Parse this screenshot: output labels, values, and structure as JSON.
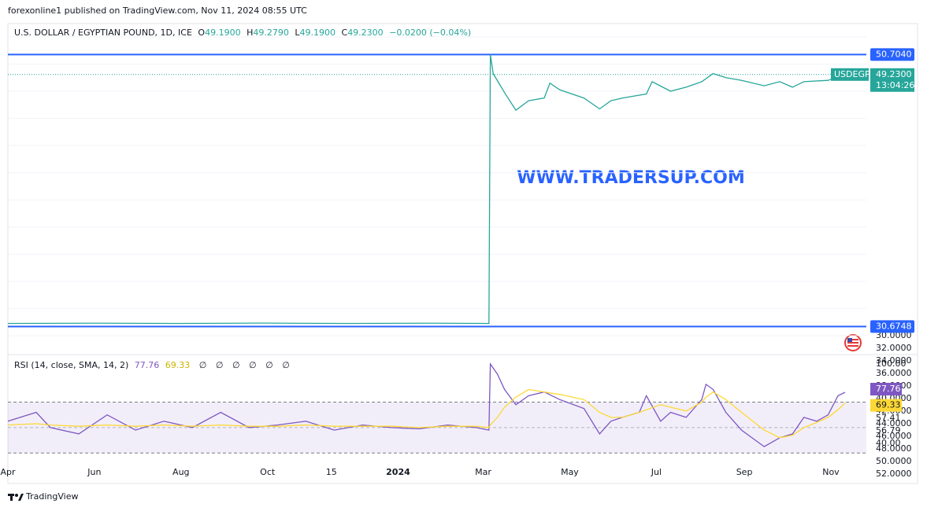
{
  "header": {
    "publisher": "forexonline1 published on TradingView.com, Nov 11, 2024 08:55 UTC"
  },
  "watermark": "WWW.TRADERSUP.COM",
  "footer": {
    "brand": "TradingView"
  },
  "chart_data": [
    {
      "type": "line",
      "title": "U.S. DOLLAR / EGYPTIAN POUND, 1D, ICE",
      "ohlc": [
        {
          "name": "O",
          "value": "49.1900"
        },
        {
          "name": "H",
          "value": "49.2790"
        },
        {
          "name": "L",
          "value": "49.1900"
        },
        {
          "name": "C",
          "value": "49.2300"
        }
      ],
      "change": "−0.0200 (−0.04%)",
      "x": [
        0,
        60,
        120,
        180,
        240,
        300,
        339,
        340,
        342,
        350,
        358,
        367,
        378,
        382,
        389,
        406,
        417,
        425,
        433,
        450,
        454,
        467,
        478,
        489,
        497,
        506,
        517,
        533,
        544,
        553,
        561,
        578,
        590
      ],
      "series": [
        {
          "name": "USDEGP",
          "color": "#26a69a",
          "values": [
            30.9,
            30.92,
            30.9,
            30.93,
            30.9,
            30.92,
            30.9,
            50.7,
            49.3,
            47.9,
            46.6,
            47.3,
            47.5,
            48.6,
            48.1,
            47.5,
            46.7,
            47.3,
            47.5,
            47.8,
            48.7,
            48.0,
            48.3,
            48.7,
            49.3,
            49.0,
            48.8,
            48.4,
            48.7,
            48.3,
            48.7,
            48.8,
            49.23
          ]
        }
      ],
      "last": {
        "label": "49.2300",
        "time": "13:04:26"
      },
      "hlines": [
        {
          "value": 50.704,
          "label": "50.7040"
        },
        {
          "value": 30.6748,
          "label": "30.6748"
        }
      ],
      "hline_color": "#2962ff",
      "xlim": [
        0,
        605
      ],
      "ylim": [
        28.67,
        52.98
      ],
      "yticks": [
        {
          "value": 30,
          "label": "30.0000"
        },
        {
          "value": 32,
          "label": "32.0000"
        },
        {
          "value": 34,
          "label": "34.0000"
        },
        {
          "value": 36,
          "label": "36.0000"
        },
        {
          "value": 38,
          "label": "38.0000"
        },
        {
          "value": 40,
          "label": "40.0000"
        },
        {
          "value": 42,
          "label": "42.0000"
        },
        {
          "value": 44,
          "label": "44.0000"
        },
        {
          "value": 46,
          "label": "46.0000"
        },
        {
          "value": 48,
          "label": "48.0000"
        },
        {
          "value": 50,
          "label": "50.0000"
        },
        {
          "value": 52,
          "label": "52.0000"
        }
      ],
      "grid": true
    },
    {
      "type": "line",
      "title": "RSI (14, close, SMA, 14, 2)",
      "placeholders": [
        "∅",
        "∅",
        "∅",
        "∅",
        "∅",
        "∅"
      ],
      "x": [
        0,
        20,
        30,
        50,
        70,
        90,
        110,
        130,
        150,
        170,
        190,
        210,
        230,
        250,
        270,
        290,
        310,
        330,
        339,
        340,
        345,
        350,
        358,
        367,
        378,
        389,
        406,
        417,
        425,
        433,
        445,
        450,
        460,
        467,
        478,
        489,
        492,
        497,
        506,
        517,
        533,
        544,
        553,
        561,
        570,
        578,
        585,
        590
      ],
      "series": [
        {
          "color": "#7e57c2",
          "values": [
            55,
            62,
            50,
            45,
            60,
            48,
            55,
            50,
            62,
            50,
            52,
            55,
            48,
            52,
            50,
            49,
            52,
            50,
            48,
            100,
            92,
            80,
            68,
            75,
            78,
            72,
            65,
            45,
            55,
            58,
            62,
            75,
            55,
            62,
            58,
            72,
            84,
            80,
            62,
            48,
            35,
            42,
            45,
            58,
            55,
            60,
            75,
            77.76
          ]
        },
        {
          "color": "#fdd835",
          "values": [
            52,
            53,
            52,
            51,
            52,
            51,
            52,
            51,
            52,
            51,
            51,
            52,
            51,
            51,
            51,
            50,
            51,
            51,
            50,
            52,
            58,
            66,
            74,
            80,
            78,
            76,
            72,
            62,
            58,
            58,
            62,
            64,
            68,
            66,
            63,
            70,
            74,
            78,
            72,
            62,
            48,
            42,
            44,
            50,
            54,
            58,
            64,
            69.33
          ]
        }
      ],
      "band": [
        30,
        70
      ],
      "midline": 50,
      "xlim": [
        0,
        605
      ],
      "ylim": [
        22.7,
        106.2
      ],
      "yticks": [
        {
          "value": 100,
          "label": "100.00"
        },
        57.41,
        56.79,
        {
          "value": 40,
          "label": "40.00"
        }
      ],
      "xticks": [
        {
          "value": 0,
          "label": "Apr"
        },
        {
          "value": 61,
          "label": "Jun"
        },
        {
          "value": 122,
          "label": "Aug"
        },
        {
          "value": 183,
          "label": "Oct"
        },
        {
          "value": 228,
          "label": "15"
        },
        {
          "value": 275,
          "label": "2024"
        },
        {
          "value": 335,
          "label": "Mar"
        },
        {
          "value": 396,
          "label": "May"
        },
        {
          "value": 457,
          "label": "Jul"
        },
        {
          "value": 519,
          "label": "Sep"
        },
        {
          "value": 580,
          "label": "Nov"
        }
      ]
    }
  ]
}
